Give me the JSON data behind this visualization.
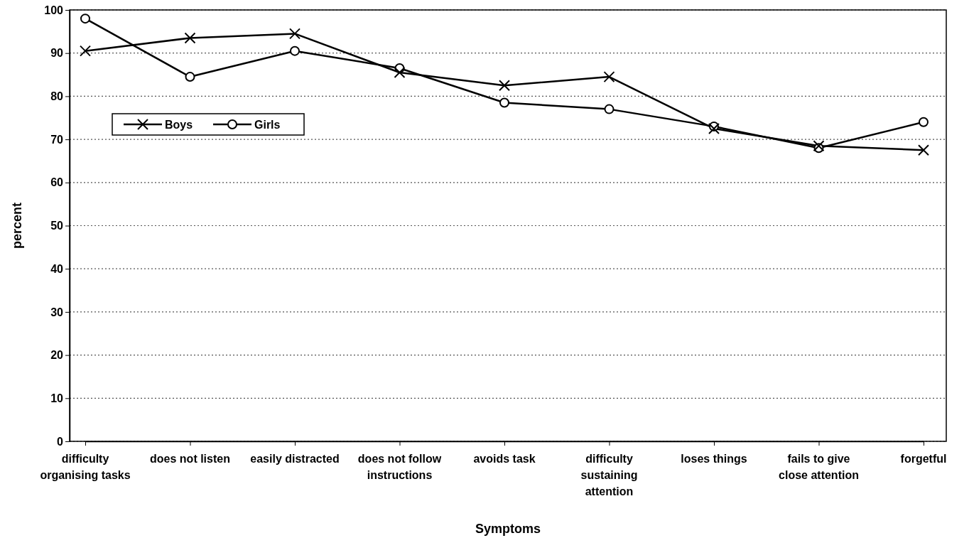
{
  "chart_data": {
    "type": "line",
    "xlabel": "Symptoms",
    "ylabel": "percent",
    "categories": [
      "difficulty organising tasks",
      "does not listen",
      "easily distracted",
      "does not follow instructions",
      "avoids task",
      "difficulty sustaining attention",
      "loses things",
      "fails to give close attention",
      "forgetful"
    ],
    "series": [
      {
        "name": "Boys",
        "color": "#000000",
        "marker": "cross",
        "values": [
          90.5,
          93.5,
          94.5,
          85.5,
          82.5,
          84.5,
          72.5,
          68.5,
          67.5
        ]
      },
      {
        "name": "Girls",
        "color": "#000000",
        "marker": "circle",
        "values": [
          98,
          84.5,
          90.5,
          86.5,
          78.5,
          77,
          73,
          68,
          74
        ]
      }
    ],
    "ylim": [
      0,
      100
    ],
    "yticks": [
      0,
      10,
      20,
      30,
      40,
      50,
      60,
      70,
      80,
      90,
      100
    ],
    "grid": "y",
    "legend": "left",
    "line_style": "solid"
  }
}
